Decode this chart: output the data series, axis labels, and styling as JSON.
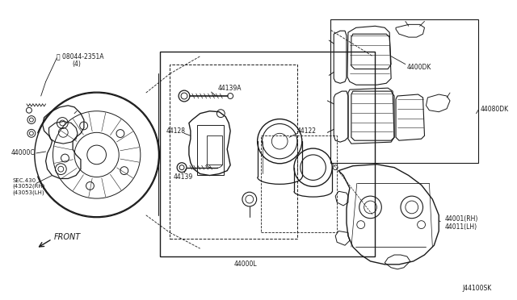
{
  "bg_color": "#ffffff",
  "line_color": "#1a1a1a",
  "fig_width": 6.4,
  "fig_height": 3.72,
  "dpi": 100,
  "labels": {
    "bolt_label": "Ⓑ 08044-2351A\n       (4)",
    "part_44000C": "44000C",
    "sec_label": "SEC.430\n(43052(RH)\n(43053(LH)",
    "part_44139A": "44139A",
    "part_44128": "44128",
    "part_44122": "44122",
    "part_44139": "44139",
    "part_44000L": "44000L",
    "part_44000DK": "4400DK",
    "part_44080DK": "44080DK",
    "part_44001": "44001(RH)\n44011(LH)",
    "front_label": "FRONT",
    "code_label": "J44100SK"
  }
}
